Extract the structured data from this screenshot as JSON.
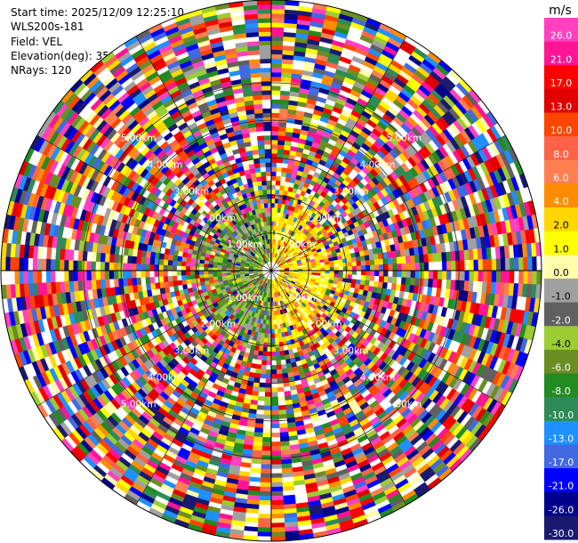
{
  "header": {
    "start_time": "Start time: 2025/12/09 12:25:10",
    "instrument": "WLS200s-181",
    "field": "Field: VEL",
    "elevation": "Elevation(deg): 35.00",
    "nrays": "NRays: 120"
  },
  "chart_data": {
    "type": "heatmap",
    "projection": "polar-ppi",
    "field": "VEL",
    "units": "m/s",
    "elevation_deg": 35.0,
    "n_rays": 120,
    "range_rings_km": [
      1.0,
      2.0,
      3.0,
      4.0,
      5.0
    ],
    "range_ring_labels": [
      "1.00km",
      "2.00km",
      "3.00km",
      "4.00km",
      "5.00km"
    ],
    "max_range_km": 7.2,
    "colorbar": {
      "unit_label": "m/s",
      "tick_labels": [
        "26.0",
        "21.0",
        "17.0",
        "13.0",
        "10.0",
        "8.0",
        "6.0",
        "4.0",
        "2.0",
        "1.0",
        "0.0",
        "-1.0",
        "-2.0",
        "-4.0",
        "-6.0",
        "-8.0",
        "-10.0",
        "-13.0",
        "-17.0",
        "-21.0",
        "-26.0",
        "-30.0"
      ],
      "colors": [
        "#ff40c0",
        "#ff1493",
        "#ff0000",
        "#e00000",
        "#ff4500",
        "#ff6347",
        "#ff7f50",
        "#ff8c00",
        "#ffd700",
        "#ffff00",
        "#ffffaa",
        "#a0a0a0",
        "#606060",
        "#9acd32",
        "#6b8e23",
        "#228b22",
        "#2e8b57",
        "#1e90ff",
        "#4169e1",
        "#0000ff",
        "#00008b",
        "#191970"
      ]
    },
    "pattern": "Inner ranges (< ~1.5 km) show mostly yellow/orange positive velocities to the east and green/olive negative velocities to the west; beyond that the field is dominated by random noise across the full colour scale."
  }
}
